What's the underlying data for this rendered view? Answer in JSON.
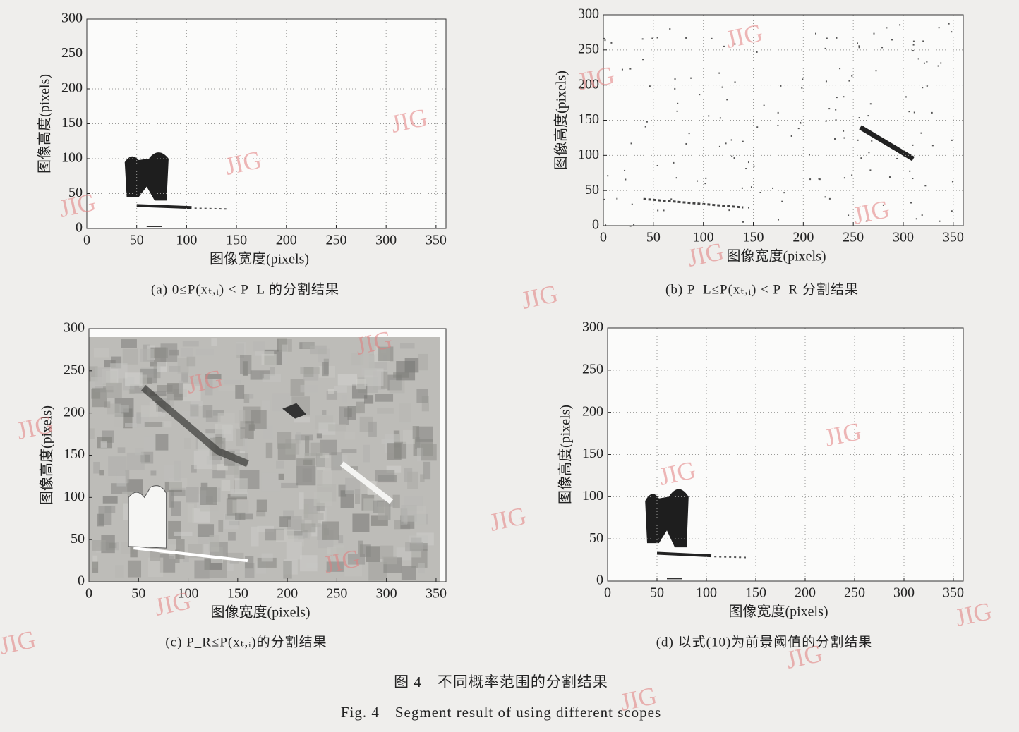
{
  "chart_data": [
    {
      "type": "image",
      "caption": "(a) 0≤P(xₜ,ᵢ) < P_L 的分割结果",
      "xlabel": "图像宽度(pixels)",
      "ylabel": "图像高度(pixels)",
      "xlim": [
        0,
        360
      ],
      "ylim": [
        0,
        300
      ],
      "xticks": [
        0,
        50,
        100,
        150,
        200,
        250,
        300,
        350
      ],
      "yticks": [
        0,
        50,
        100,
        150,
        200,
        250,
        300
      ],
      "grid": true
    },
    {
      "type": "image",
      "caption": "(b) P_L≤P(xₜ,ᵢ) < P_R 分割结果",
      "xlabel": "图像宽度(pixels)",
      "ylabel": "图像高度(pixels)",
      "xlim": [
        0,
        360
      ],
      "ylim": [
        0,
        300
      ],
      "xticks": [
        0,
        50,
        100,
        150,
        200,
        250,
        300,
        350
      ],
      "yticks": [
        0,
        50,
        100,
        150,
        200,
        250,
        300
      ],
      "grid": true
    },
    {
      "type": "image",
      "caption": "(c) P_R≤P(xₜ,ᵢ)的分割结果",
      "xlabel": "图像宽度(pixels)",
      "ylabel": "图像高度(pixels)",
      "xlim": [
        0,
        360
      ],
      "ylim": [
        0,
        300
      ],
      "xticks": [
        0,
        50,
        100,
        150,
        200,
        250,
        300,
        350
      ],
      "yticks": [
        0,
        50,
        100,
        150,
        200,
        250,
        300
      ],
      "grid": false
    },
    {
      "type": "image",
      "caption": "(d) 以式(10)为前景阈值的分割结果",
      "xlabel": "图像宽度(pixels)",
      "ylabel": "图像高度(pixels)",
      "xlim": [
        0,
        360
      ],
      "ylim": [
        0,
        300
      ],
      "xticks": [
        0,
        50,
        100,
        150,
        200,
        250,
        300,
        350
      ],
      "yticks": [
        0,
        50,
        100,
        150,
        200,
        250,
        300
      ],
      "grid": true
    }
  ],
  "figure": {
    "caption_cn": "图 4　不同概率范围的分割结果",
    "caption_en": "Fig. 4　Segment result of using different scopes"
  },
  "watermark": "JIG"
}
